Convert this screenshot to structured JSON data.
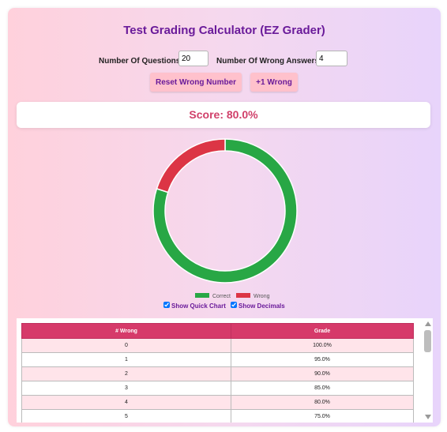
{
  "title": "Test Grading Calculator (EZ Grader)",
  "inputs": {
    "questions_label": "Number Of Questions:",
    "questions_value": "20",
    "wrong_label": "Number Of Wrong Answers:",
    "wrong_value": "4"
  },
  "buttons": {
    "reset_label": "Reset Wrong Number",
    "plus_one_label": "+1 Wrong"
  },
  "score_text": "Score: 80.0%",
  "options": {
    "quick_chart_label": "Show Quick Chart",
    "quick_chart_checked": true,
    "decimals_label": "Show Decimals",
    "decimals_checked": true
  },
  "chart_data": {
    "type": "pie",
    "categories": [
      "Correct",
      "Wrong"
    ],
    "values": [
      16,
      4
    ],
    "colors": [
      "#28a745",
      "#dc3545"
    ],
    "legend": "bottom",
    "donut": true
  },
  "table": {
    "headers": [
      "# Wrong",
      "Grade"
    ],
    "rows": [
      [
        "0",
        "100.0%"
      ],
      [
        "1",
        "95.0%"
      ],
      [
        "2",
        "90.0%"
      ],
      [
        "3",
        "85.0%"
      ],
      [
        "4",
        "80.0%"
      ],
      [
        "5",
        "75.0%"
      ]
    ]
  },
  "colors": {
    "accent": "#6a1b9a",
    "score": "#d0406a",
    "table_header": "#d63a6a"
  }
}
